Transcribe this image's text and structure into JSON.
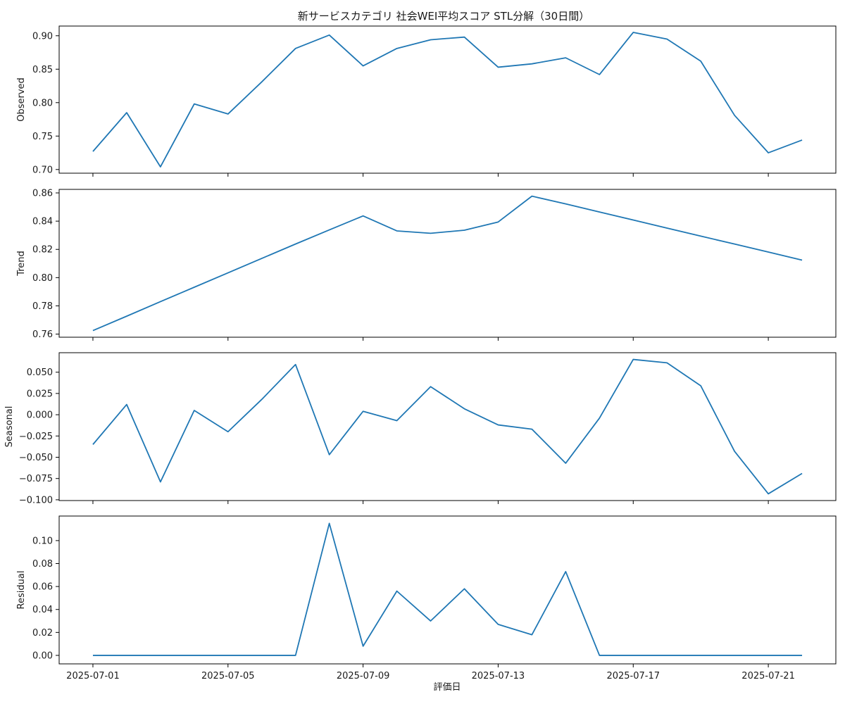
{
  "figure": {
    "title": "新サービスカテゴリ 社会WEI平均スコア STL分解（30日間）",
    "xlabel": "評価日",
    "line_color": "#1f77b4"
  },
  "chart_data": [
    {
      "type": "line",
      "ylabel": "Observed",
      "x": [
        "2025-07-01",
        "2025-07-02",
        "2025-07-03",
        "2025-07-04",
        "2025-07-05",
        "2025-07-06",
        "2025-07-07",
        "2025-07-08",
        "2025-07-09",
        "2025-07-10",
        "2025-07-11",
        "2025-07-12",
        "2025-07-13",
        "2025-07-14",
        "2025-07-15",
        "2025-07-16",
        "2025-07-17",
        "2025-07-18",
        "2025-07-19",
        "2025-07-20",
        "2025-07-21",
        "2025-07-22"
      ],
      "values": [
        0.727,
        0.785,
        0.704,
        0.798,
        0.783,
        0.831,
        0.881,
        0.901,
        0.855,
        0.881,
        0.894,
        0.898,
        0.853,
        0.858,
        0.867,
        0.842,
        0.905,
        0.895,
        0.862,
        0.781,
        0.725,
        0.744
      ],
      "yticks": [
        0.7,
        0.75,
        0.8,
        0.85,
        0.9
      ],
      "ytick_labels": [
        "0.70",
        "0.75",
        "0.80",
        "0.85",
        "0.90"
      ],
      "ylim": [
        0.6945,
        0.9145
      ],
      "grid": false
    },
    {
      "type": "line",
      "ylabel": "Trend",
      "x": [
        "2025-07-01",
        "2025-07-02",
        "2025-07-03",
        "2025-07-04",
        "2025-07-05",
        "2025-07-06",
        "2025-07-07",
        "2025-07-08",
        "2025-07-09",
        "2025-07-10",
        "2025-07-11",
        "2025-07-12",
        "2025-07-13",
        "2025-07-14",
        "2025-07-15",
        "2025-07-16",
        "2025-07-17",
        "2025-07-18",
        "2025-07-19",
        "2025-07-20",
        "2025-07-21",
        "2025-07-22"
      ],
      "values": [
        0.7625,
        0.7727,
        0.783,
        0.7932,
        0.8034,
        0.8136,
        0.8238,
        0.8338,
        0.8437,
        0.8331,
        0.8314,
        0.8336,
        0.8394,
        0.8577,
        0.8522,
        0.8465,
        0.8408,
        0.8351,
        0.8294,
        0.8238,
        0.8181,
        0.8124
      ],
      "yticks": [
        0.76,
        0.78,
        0.8,
        0.82,
        0.84,
        0.86
      ],
      "ytick_labels": [
        "0.76",
        "0.78",
        "0.80",
        "0.82",
        "0.84",
        "0.86"
      ],
      "ylim": [
        0.7578,
        0.8625
      ],
      "grid": false
    },
    {
      "type": "line",
      "ylabel": "Seasonal",
      "x": [
        "2025-07-01",
        "2025-07-02",
        "2025-07-03",
        "2025-07-04",
        "2025-07-05",
        "2025-07-06",
        "2025-07-07",
        "2025-07-08",
        "2025-07-09",
        "2025-07-10",
        "2025-07-11",
        "2025-07-12",
        "2025-07-13",
        "2025-07-14",
        "2025-07-15",
        "2025-07-16",
        "2025-07-17",
        "2025-07-18",
        "2025-07-19",
        "2025-07-20",
        "2025-07-21",
        "2025-07-22"
      ],
      "values": [
        -0.035,
        0.012,
        -0.079,
        0.005,
        -0.02,
        0.018,
        0.059,
        -0.047,
        0.004,
        -0.007,
        0.033,
        0.007,
        -0.012,
        -0.017,
        -0.057,
        -0.004,
        0.065,
        0.061,
        0.034,
        -0.043,
        -0.093,
        -0.069
      ],
      "yticks": [
        -0.1,
        -0.075,
        -0.05,
        -0.025,
        0.0,
        0.025,
        0.05
      ],
      "ytick_labels": [
        "−0.100",
        "−0.075",
        "−0.050",
        "−0.025",
        "0.000",
        "0.025",
        "0.050"
      ],
      "ylim": [
        -0.1009,
        0.0729
      ],
      "grid": false
    },
    {
      "type": "line",
      "ylabel": "Residual",
      "x": [
        "2025-07-01",
        "2025-07-02",
        "2025-07-03",
        "2025-07-04",
        "2025-07-05",
        "2025-07-06",
        "2025-07-07",
        "2025-07-08",
        "2025-07-09",
        "2025-07-10",
        "2025-07-11",
        "2025-07-12",
        "2025-07-13",
        "2025-07-14",
        "2025-07-15",
        "2025-07-16",
        "2025-07-17",
        "2025-07-18",
        "2025-07-19",
        "2025-07-20",
        "2025-07-21",
        "2025-07-22"
      ],
      "values": [
        0,
        0,
        0,
        0,
        0,
        0,
        0,
        0.115,
        0.008,
        0.056,
        0.03,
        0.058,
        0.027,
        0.018,
        0.073,
        0,
        0,
        0,
        0,
        0,
        0,
        0
      ],
      "yticks": [
        0.0,
        0.02,
        0.04,
        0.06,
        0.08,
        0.1
      ],
      "ytick_labels": [
        "0.00",
        "0.02",
        "0.04",
        "0.06",
        "0.08",
        "0.10"
      ],
      "ylim": [
        -0.0074,
        0.1214
      ],
      "grid": false
    }
  ],
  "xaxis": {
    "tick_dates": [
      "2025-07-01",
      "2025-07-05",
      "2025-07-09",
      "2025-07-13",
      "2025-07-17",
      "2025-07-21"
    ],
    "tick_labels": [
      "2025-07-01",
      "2025-07-05",
      "2025-07-09",
      "2025-07-13",
      "2025-07-17",
      "2025-07-21"
    ],
    "xlim": [
      "2025-06-30T00:00",
      "2025-07-23T00:00"
    ]
  }
}
